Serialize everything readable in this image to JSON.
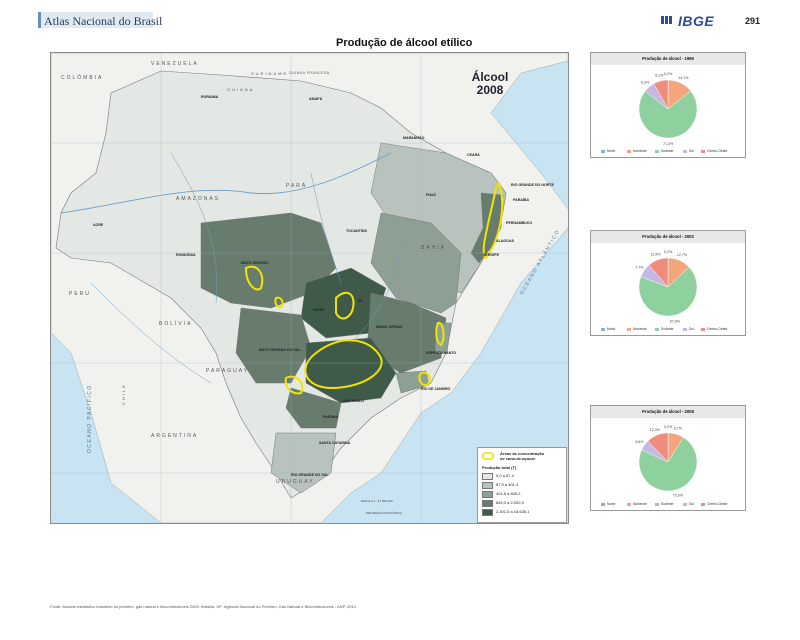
{
  "header": {
    "atlas_title": "Atlas Nacional do Brasil",
    "logo_text": "IBGE",
    "page_number": "291"
  },
  "main_title": "Produção de álcool etílico",
  "map": {
    "inset_title_line1": "Álcool",
    "inset_title_line2": "2008",
    "country_labels": [
      "VENEZUELA",
      "COLÔMBIA",
      "SURINAME",
      "GUIANA",
      "GUIANA FRANCESA",
      "PERU",
      "BOLÍVIA",
      "PARAGUAY",
      "ARGENTINA",
      "URUGUAY",
      "CHILE"
    ],
    "region_labels": [
      "AMAZONAS",
      "PARÁ",
      "BAHIA",
      "AMAPÁ",
      "RORAIMA",
      "ACRE",
      "RONDÔNIA",
      "MATO GROSSO",
      "TOCANTINS",
      "PIAUÍ",
      "MARANHÃO",
      "CEARÁ",
      "RIO GRANDE DO NORTE",
      "PARAÍBA",
      "PERNAMBUCO",
      "ALAGOAS",
      "SERGIPE",
      "GOIÁS",
      "MINAS GERAIS",
      "ESPÍRITO SANTO",
      "RIO DE JANEIRO",
      "SÃO PAULO",
      "PARANÁ",
      "SANTA CATARINA",
      "RIO GRANDE DO SUL",
      "MATO GROSSO DO SUL",
      "DF"
    ],
    "ocean_labels": [
      "OCEANO ATLÂNTICO",
      "OCEANO PACÍFICO"
    ],
    "scale_text": "ESCALA 1 : 17 500 000",
    "projection_text": "PROJEÇÃO POLICÔNICA"
  },
  "legend": {
    "cane_label_line1": "Áreas de concentração",
    "cane_label_line2": "de cana-de-açúcar",
    "production_title": "Produção total (T)",
    "classes": [
      {
        "range": "0,0   a   87,4",
        "color": "#e3e8e5"
      },
      {
        "range": "87,5   a   401,4",
        "color": "#b7c3bc"
      },
      {
        "range": "401,5   a   845,2",
        "color": "#8ea094"
      },
      {
        "range": "845,3   a   2.200,9",
        "color": "#677c6d"
      },
      {
        "range": "2.201,0   a   16.626,1",
        "color": "#3f5a48"
      }
    ],
    "cane_color": "#f2e300"
  },
  "pies": [
    {
      "title": "Produção de álcool - 1999",
      "slices": [
        {
          "name": "Norte",
          "value": 0.2,
          "label": "0,2%",
          "color": "#7fb2dd"
        },
        {
          "name": "Nordeste",
          "value": 14.1,
          "label": "14,1%",
          "color": "#f4a57c"
        },
        {
          "name": "Sudeste",
          "value": 71.3,
          "label": "71,3%",
          "color": "#8fd19e"
        },
        {
          "name": "Sul",
          "value": 6.3,
          "label": "6,3%",
          "color": "#c7b8e2"
        },
        {
          "name": "Centro-Oeste",
          "value": 8.1,
          "label": "8,1%",
          "color": "#f08c7b"
        }
      ]
    },
    {
      "title": "Produção de álcool - 2002",
      "slices": [
        {
          "name": "Norte",
          "value": 0.2,
          "label": "0,2%",
          "color": "#7fb2dd"
        },
        {
          "name": "Nordeste",
          "value": 12.7,
          "label": "12,7%",
          "color": "#f4a57c"
        },
        {
          "name": "Sudeste",
          "value": 67.9,
          "label": "67,9%",
          "color": "#8fd19e"
        },
        {
          "name": "Sul",
          "value": 7.7,
          "label": "7,7%",
          "color": "#c7b8e2"
        },
        {
          "name": "Centro-Oeste",
          "value": 11.5,
          "label": "11,5%",
          "color": "#f08c7b"
        }
      ]
    },
    {
      "title": "Produção de álcool - 2008",
      "slices": [
        {
          "name": "Norte",
          "value": 0.2,
          "label": "0,2%",
          "color": "#7fb2dd"
        },
        {
          "name": "Nordeste",
          "value": 8.7,
          "label": "8,7%",
          "color": "#f4a57c"
        },
        {
          "name": "Sudeste",
          "value": 73.0,
          "label": "73,0%",
          "color": "#8fd19e"
        },
        {
          "name": "Sul",
          "value": 5.8,
          "label": "5,8%",
          "color": "#c7b8e2"
        },
        {
          "name": "Centro-Oeste",
          "value": 12.3,
          "label": "12,3%",
          "color": "#f08c7b"
        }
      ]
    }
  ],
  "footer": "Fonte: Anuário estatístico brasileiro do petróleo, gás natural e biocombustíveis 2009. Brasília, DF: Agência Nacional do Petróleo, Gás Natural e Biocombustíveis - ANP, 2010."
}
